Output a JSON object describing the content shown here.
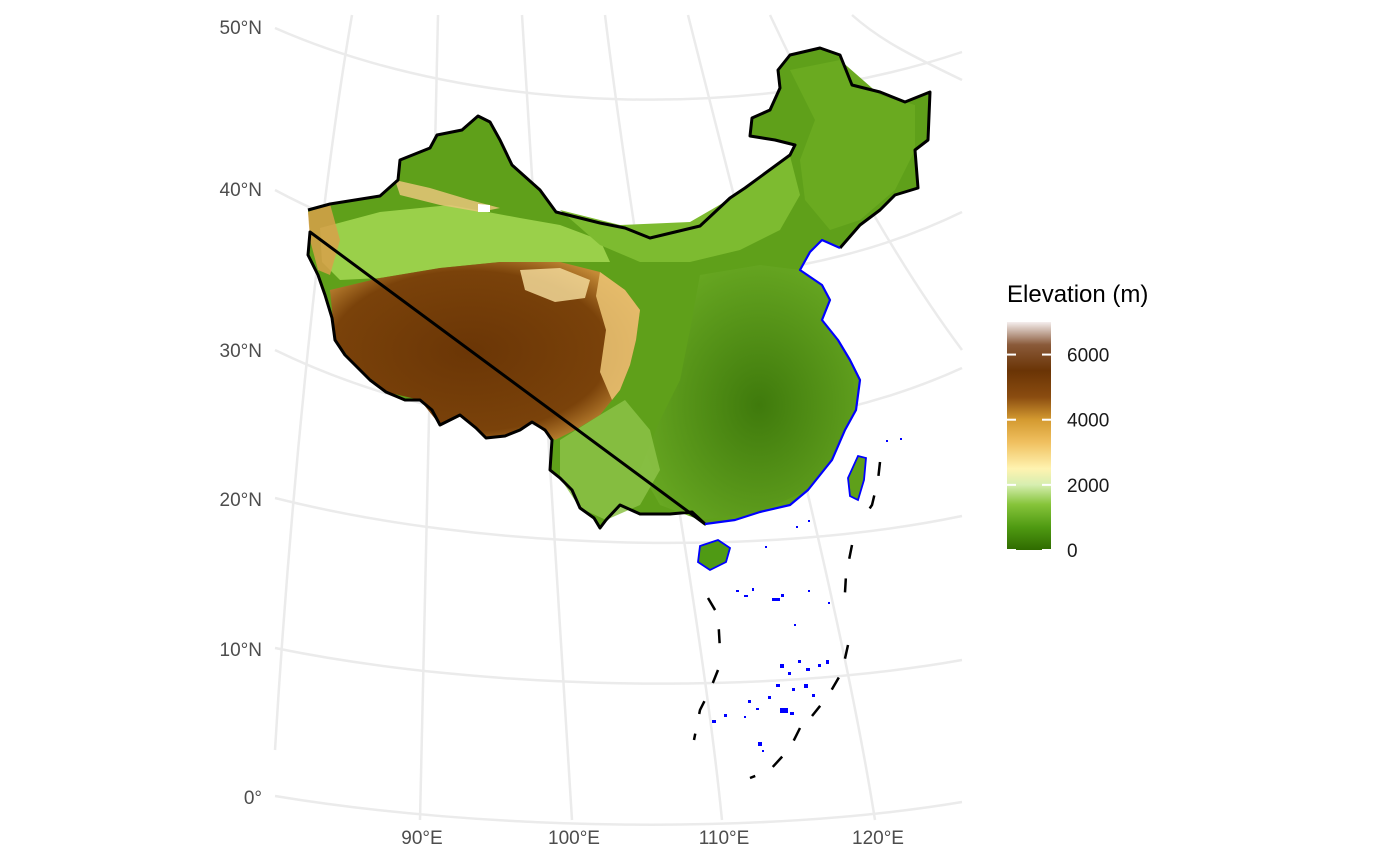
{
  "map": {
    "title": "",
    "lat_labels": [
      "50°N",
      "40°N",
      "30°N",
      "20°N",
      "10°N",
      "0°"
    ],
    "lon_labels": [
      "90°E",
      "100°E",
      "110°E",
      "120°E"
    ],
    "colors": {
      "graticule": "#ebebeb",
      "boundary": "#000000",
      "coastline": "#0000ff",
      "dashed_line": "#000000"
    }
  },
  "legend": {
    "title": "Elevation (m)",
    "ticks": [
      "6000",
      "4000",
      "2000",
      "0"
    ],
    "tick_values": [
      6000,
      4000,
      2000,
      0
    ],
    "range": [
      0,
      7000
    ],
    "gradient": [
      {
        "value": 0,
        "color": "#2f6b00"
      },
      {
        "value": 700,
        "color": "#4f9a12"
      },
      {
        "value": 1400,
        "color": "#86c43a"
      },
      {
        "value": 2000,
        "color": "#d6eeb0"
      },
      {
        "value": 2500,
        "color": "#fff3b0"
      },
      {
        "value": 3300,
        "color": "#f0c060"
      },
      {
        "value": 4000,
        "color": "#d49a30"
      },
      {
        "value": 4700,
        "color": "#8a4c10"
      },
      {
        "value": 5500,
        "color": "#6a3405"
      },
      {
        "value": 6300,
        "color": "#8a5a3a"
      },
      {
        "value": 7000,
        "color": "#f5eeee"
      }
    ]
  }
}
